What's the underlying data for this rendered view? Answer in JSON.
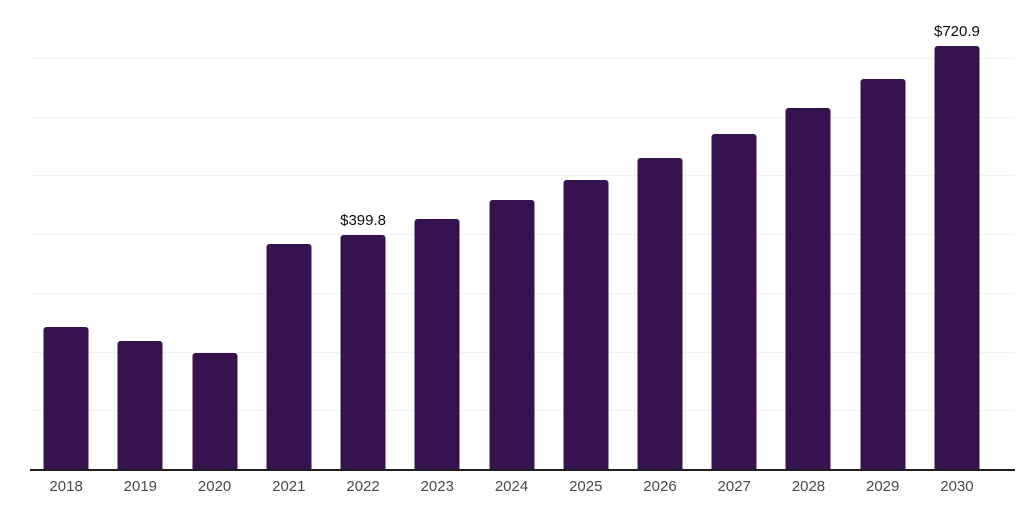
{
  "chart_data": {
    "type": "bar",
    "title": "",
    "xlabel": "",
    "ylabel": "",
    "categories": [
      "2018",
      "2019",
      "2020",
      "2021",
      "2022",
      "2023",
      "2024",
      "2025",
      "2026",
      "2027",
      "2028",
      "2029",
      "2030"
    ],
    "values": [
      244.0,
      219.6,
      199.1,
      384.7,
      399.8,
      427.7,
      459.5,
      493.6,
      530.5,
      571.9,
      615.6,
      665.5,
      720.9
    ],
    "data_labels": {
      "2022": "$399.8",
      "2030": "$720.9"
    },
    "ylim": [
      0,
      800
    ],
    "gridline_step": 100,
    "grid": true,
    "y_axis_tick_labels_visible": false,
    "legend_position": "none",
    "bar_color": "#36124e",
    "gridline_color": "#f2f2f2",
    "axis_line_color": "#1f1f1f",
    "tick_label_color": "#4a4a4a",
    "data_label_color": "#0d0d0d",
    "background_color": "#ffffff"
  }
}
